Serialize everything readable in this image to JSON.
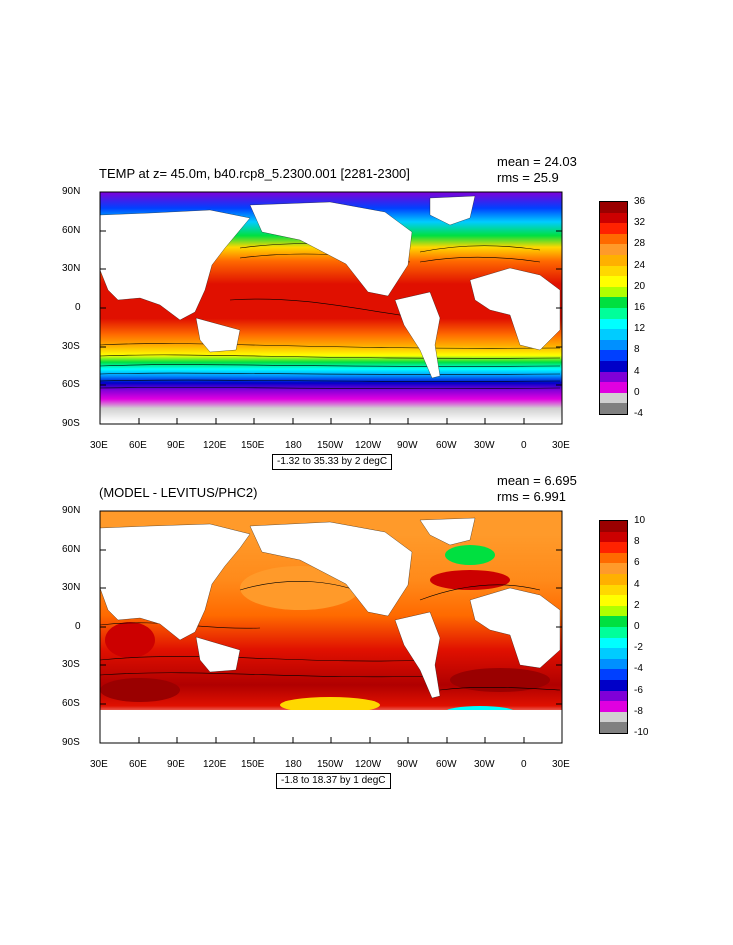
{
  "panels": [
    {
      "title": "TEMP at z=  45.0m, b40.rcp8_5.2300.001 [2281-2300]",
      "mean_text": "mean = 24.03",
      "rms_text": "rms = 25.9",
      "range_text": "-1.32 to 35.33 by 2 degC",
      "colorbar": {
        "labels": [
          "36",
          "32",
          "28",
          "24",
          "20",
          "16",
          "12",
          "8",
          "4",
          "0",
          "-4"
        ],
        "colors": [
          "#9a0000",
          "#cc0000",
          "#ff2200",
          "#ff6a00",
          "#ff9a2a",
          "#ffb000",
          "#ffd800",
          "#ffff00",
          "#b0ff00",
          "#00e040",
          "#00ff9a",
          "#00ffff",
          "#00ccff",
          "#0090ff",
          "#0040ff",
          "#0000c8",
          "#8000d8",
          "#e000e0",
          "#d0d0d0",
          "#808080"
        ]
      }
    },
    {
      "title": "(MODEL - LEVITUS/PHC2)",
      "mean_text": "mean = 6.695",
      "rms_text": "rms = 6.991",
      "range_text": "-1.8 to 18.37 by 1 degC",
      "colorbar": {
        "labels": [
          "10",
          "8",
          "6",
          "4",
          "2",
          "0",
          "-2",
          "-4",
          "-6",
          "-8",
          "-10"
        ],
        "colors": [
          "#9a0000",
          "#cc0000",
          "#ff2200",
          "#ff6a00",
          "#ff9a2a",
          "#ffb000",
          "#ffd800",
          "#ffff00",
          "#b0ff00",
          "#00e040",
          "#00ff9a",
          "#00ffff",
          "#00ccff",
          "#0090ff",
          "#0040ff",
          "#0000c8",
          "#8000d8",
          "#e000e0",
          "#d0d0d0",
          "#808080"
        ]
      }
    }
  ],
  "lat_labels": [
    "90N",
    "60N",
    "30N",
    "0",
    "30S",
    "60S",
    "90S"
  ],
  "lon_labels": [
    "30E",
    "60E",
    "90E",
    "120E",
    "150E",
    "180",
    "150W",
    "120W",
    "90W",
    "60W",
    "30W",
    "0",
    "30E"
  ]
}
